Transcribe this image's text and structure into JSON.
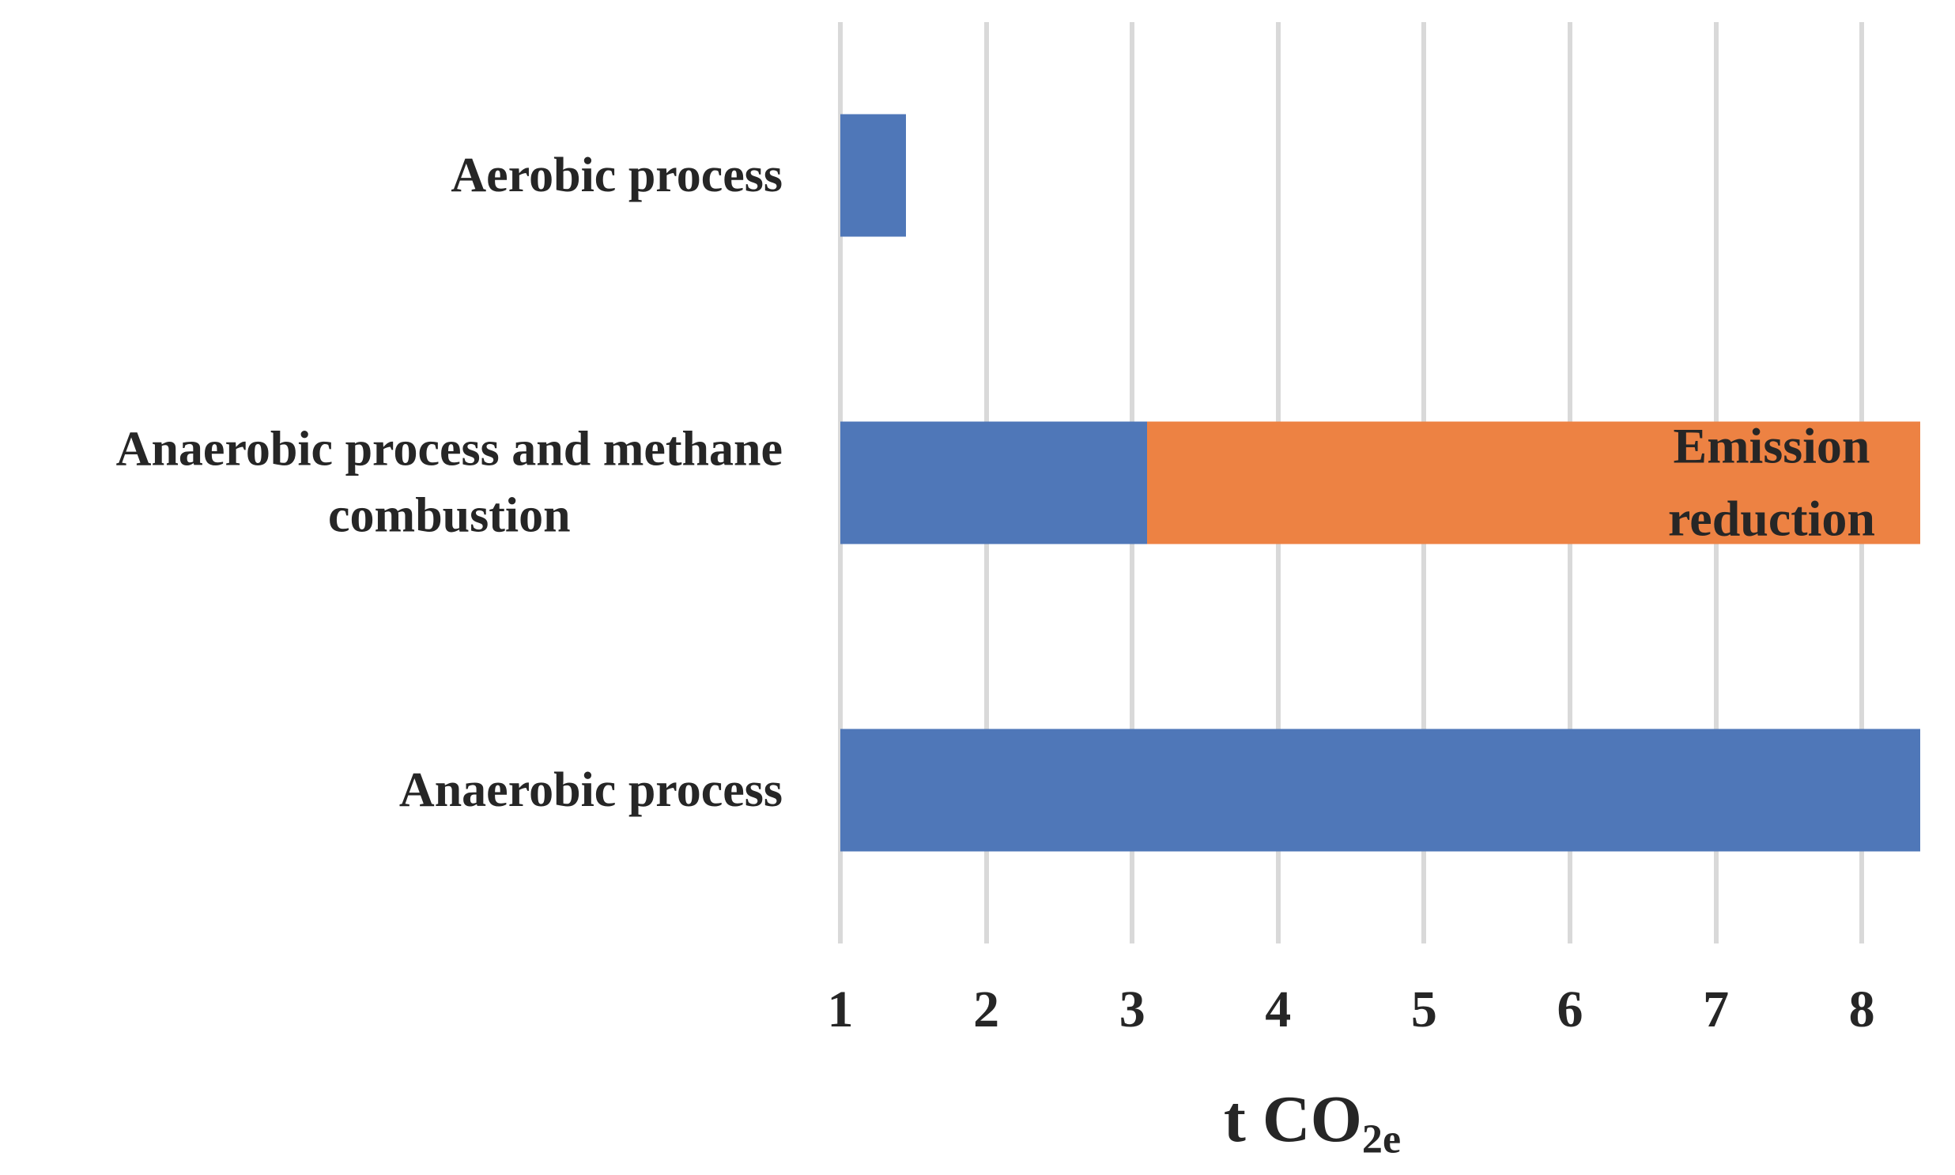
{
  "colors": {
    "background": "#ffffff",
    "text": "#262626",
    "grid": "#d9d9d9",
    "blue": "#4f77b8",
    "orange": "#ed8243"
  },
  "chart_data": {
    "type": "bar",
    "orientation": "horizontal",
    "stacked": true,
    "grid": true,
    "x_axis": {
      "min": 1,
      "max": 8.4,
      "ticks": [
        "1",
        "2",
        "3",
        "4",
        "5",
        "6",
        "7",
        "8"
      ],
      "label": "t CO2e",
      "label_main": "t CO",
      "label_sub": "2e"
    },
    "categories": [
      "Aerobic process",
      "Anaerobic process and methane combustion",
      "Anaerobic process"
    ],
    "bars": [
      {
        "category_lines": [
          "Aerobic process"
        ],
        "segments": [
          {
            "from": 1,
            "to": 1.45,
            "color_key": "blue"
          }
        ]
      },
      {
        "category_lines": [
          "Anaerobic process and methane",
          "combustion"
        ],
        "segments": [
          {
            "from": 1,
            "to": 3.1,
            "color_key": "blue"
          },
          {
            "from": 3.1,
            "to": 8.4,
            "color_key": "orange",
            "label_lines": [
              "Emission",
              "reduction"
            ]
          }
        ]
      },
      {
        "category_lines": [
          "Anaerobic process"
        ],
        "segments": [
          {
            "from": 1,
            "to": 8.4,
            "color_key": "blue"
          }
        ]
      }
    ]
  }
}
